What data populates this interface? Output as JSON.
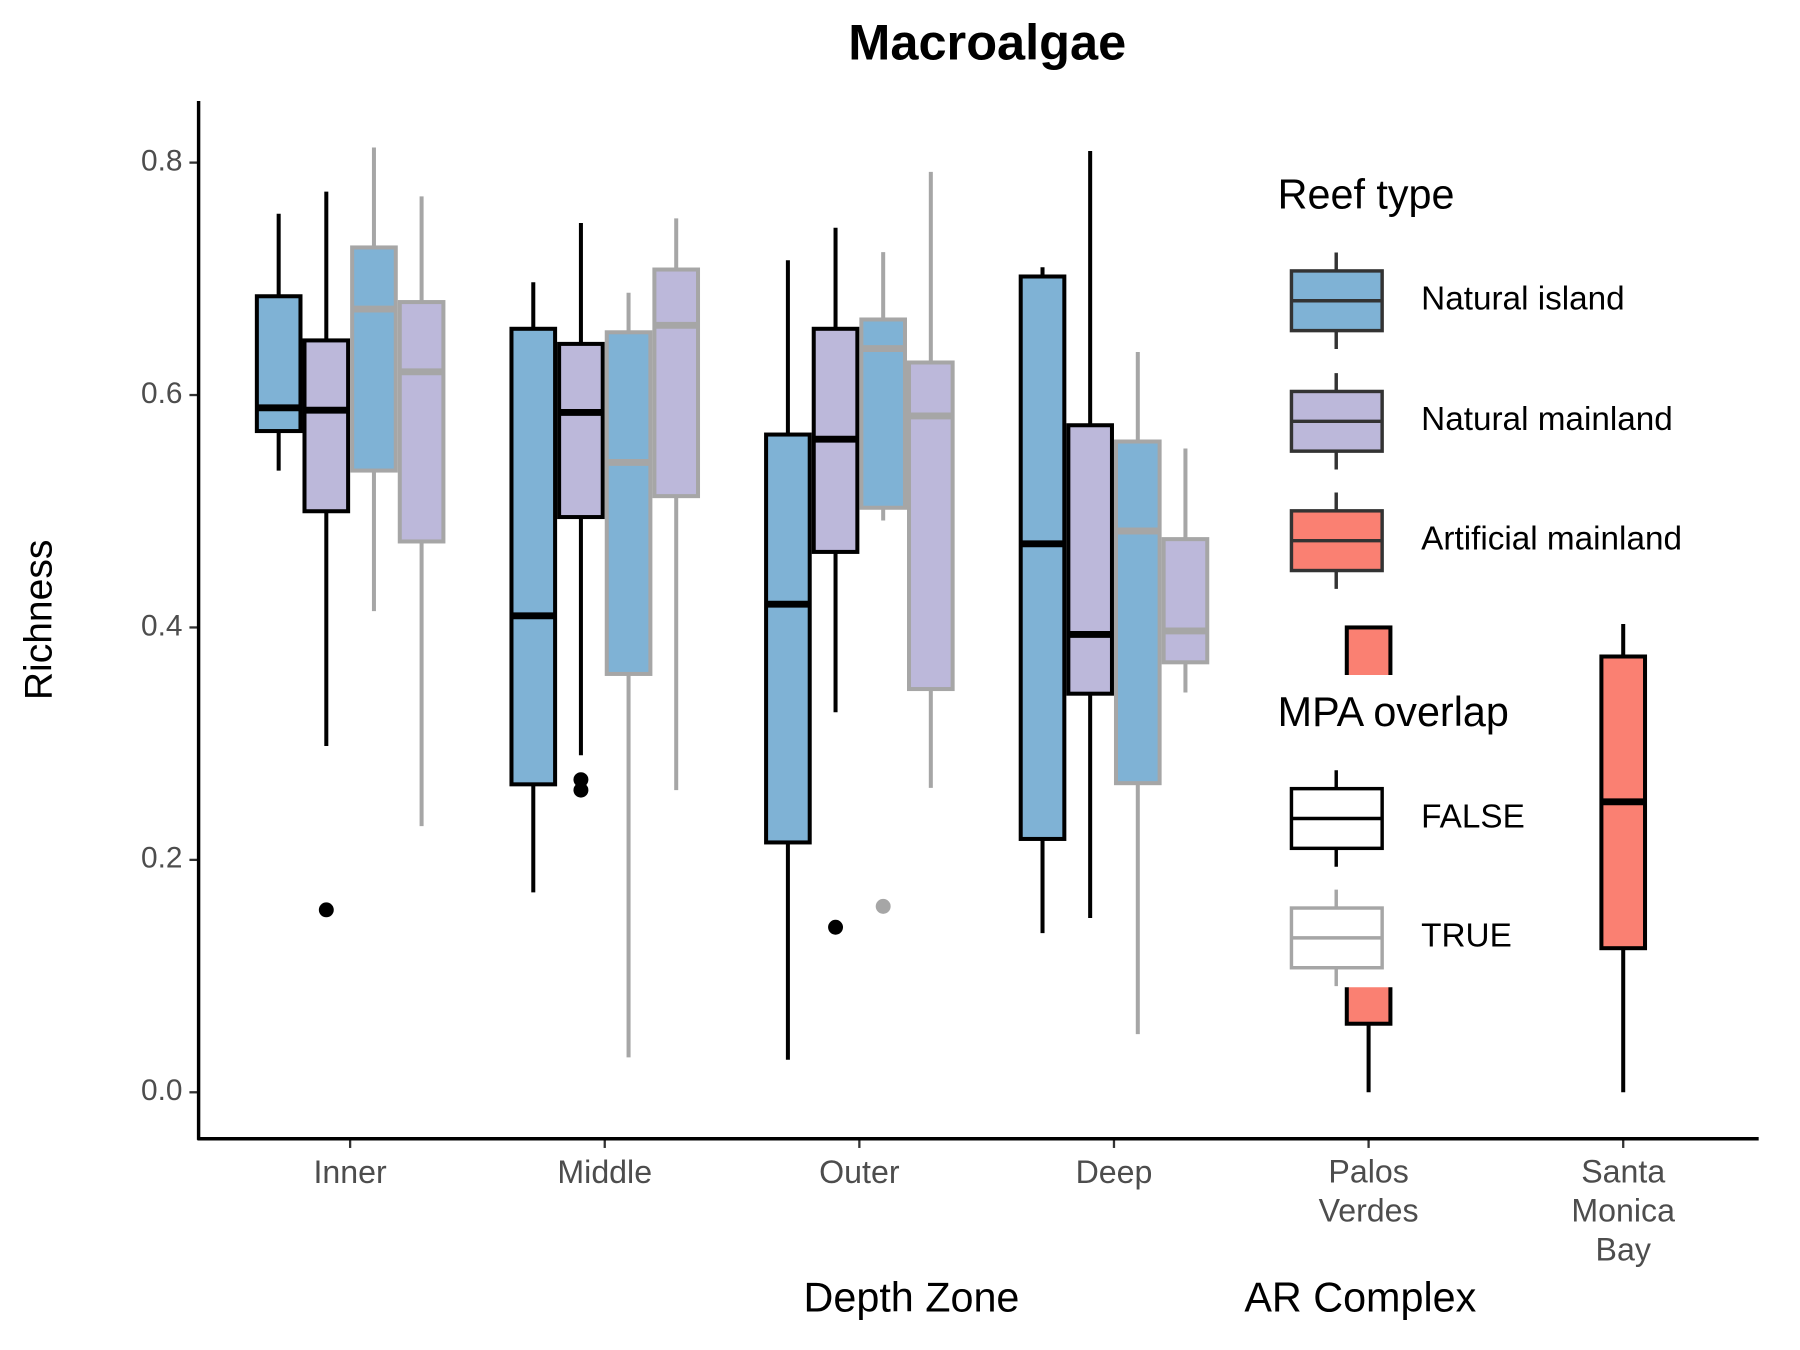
{
  "chart_data": {
    "type": "box",
    "title": "Macroalgae",
    "ylabel": "Richness",
    "xlabels": [
      "Depth Zone",
      "AR Complex"
    ],
    "ylim": [
      -0.04,
      0.853
    ],
    "yticks": [
      {
        "value": 0,
        "label": "0.0"
      },
      0.2,
      0.4,
      0.6,
      0.8
    ],
    "legends": [
      {
        "title": "Reef type",
        "items": [
          {
            "label": "Natural island",
            "color": "#7fb2d5"
          },
          {
            "label": "Natural mainland",
            "color": "#bcb8da"
          },
          {
            "label": "Artificial mainland",
            "color": "#fa8072"
          }
        ]
      },
      {
        "title": "MPA overlap",
        "items": [
          {
            "label": "FALSE",
            "color": "#000000"
          },
          {
            "label": "TRUE",
            "color": "#a6a6a6"
          }
        ]
      }
    ],
    "groups": [
      {
        "label": "Inner",
        "boxes": [
          {
            "fill": "#7fb2d5",
            "stroke": "#000000",
            "min": 0.535,
            "q1": 0.569,
            "median": 0.589,
            "q3": 0.685,
            "max": 0.756,
            "outliers": []
          },
          {
            "fill": "#bcb8da",
            "stroke": "#000000",
            "min": 0.298,
            "q1": 0.5,
            "median": 0.587,
            "q3": 0.647,
            "max": 0.775,
            "outliers": [
              0.157
            ]
          },
          {
            "fill": "#7fb2d5",
            "stroke": "#a6a6a6",
            "min": 0.414,
            "q1": 0.535,
            "median": 0.674,
            "q3": 0.727,
            "max": 0.813,
            "outliers": []
          },
          {
            "fill": "#bcb8da",
            "stroke": "#a6a6a6",
            "min": 0.229,
            "q1": 0.474,
            "median": 0.62,
            "q3": 0.68,
            "max": 0.771,
            "outliers": []
          }
        ]
      },
      {
        "label": "Middle",
        "boxes": [
          {
            "fill": "#7fb2d5",
            "stroke": "#000000",
            "min": 0.172,
            "q1": 0.265,
            "median": 0.41,
            "q3": 0.657,
            "max": 0.697,
            "outliers": []
          },
          {
            "fill": "#bcb8da",
            "stroke": "#000000",
            "min": 0.29,
            "q1": 0.495,
            "median": 0.585,
            "q3": 0.644,
            "max": 0.748,
            "outliers": [
              0.269,
              0.26
            ]
          },
          {
            "fill": "#7fb2d5",
            "stroke": "#a6a6a6",
            "min": 0.03,
            "q1": 0.36,
            "median": 0.542,
            "q3": 0.654,
            "max": 0.688,
            "outliers": []
          },
          {
            "fill": "#bcb8da",
            "stroke": "#a6a6a6",
            "min": 0.26,
            "q1": 0.513,
            "median": 0.66,
            "q3": 0.708,
            "max": 0.752,
            "outliers": []
          }
        ]
      },
      {
        "label": "Outer",
        "boxes": [
          {
            "fill": "#7fb2d5",
            "stroke": "#000000",
            "min": 0.028,
            "q1": 0.215,
            "median": 0.42,
            "q3": 0.566,
            "max": 0.716,
            "outliers": []
          },
          {
            "fill": "#bcb8da",
            "stroke": "#000000",
            "min": 0.327,
            "q1": 0.465,
            "median": 0.562,
            "q3": 0.657,
            "max": 0.744,
            "outliers": [
              0.142
            ]
          },
          {
            "fill": "#7fb2d5",
            "stroke": "#a6a6a6",
            "min": 0.492,
            "q1": 0.503,
            "median": 0.64,
            "q3": 0.665,
            "max": 0.723,
            "outliers": [
              0.16
            ]
          },
          {
            "fill": "#bcb8da",
            "stroke": "#a6a6a6",
            "min": 0.262,
            "q1": 0.347,
            "median": 0.582,
            "q3": 0.628,
            "max": 0.792,
            "outliers": []
          }
        ]
      },
      {
        "label": "Deep",
        "boxes": [
          {
            "fill": "#7fb2d5",
            "stroke": "#000000",
            "min": 0.137,
            "q1": 0.218,
            "median": 0.472,
            "q3": 0.702,
            "max": 0.71,
            "outliers": []
          },
          {
            "fill": "#bcb8da",
            "stroke": "#000000",
            "min": 0.15,
            "q1": 0.343,
            "median": 0.394,
            "q3": 0.574,
            "max": 0.81,
            "outliers": []
          },
          {
            "fill": "#7fb2d5",
            "stroke": "#a6a6a6",
            "min": 0.05,
            "q1": 0.266,
            "median": 0.483,
            "q3": 0.56,
            "max": 0.637,
            "outliers": []
          },
          {
            "fill": "#bcb8da",
            "stroke": "#a6a6a6",
            "min": 0.344,
            "q1": 0.37,
            "median": 0.397,
            "q3": 0.476,
            "max": 0.554,
            "outliers": []
          }
        ]
      },
      {
        "label": "Palos Verdes",
        "boxes": [
          {
            "fill": "#fa8072",
            "stroke": "#000000",
            "min": 0,
            "q1": 0.059,
            "median": 0.2,
            "q3": 0.4,
            "max": 0.4,
            "outliers": []
          }
        ]
      },
      {
        "label": "Santa Monica Bay",
        "boxes": [
          {
            "fill": "#fa8072",
            "stroke": "#000000",
            "min": 0,
            "q1": 0.124,
            "median": 0.25,
            "q3": 0.375,
            "max": 0.403,
            "outliers": []
          }
        ]
      }
    ]
  }
}
